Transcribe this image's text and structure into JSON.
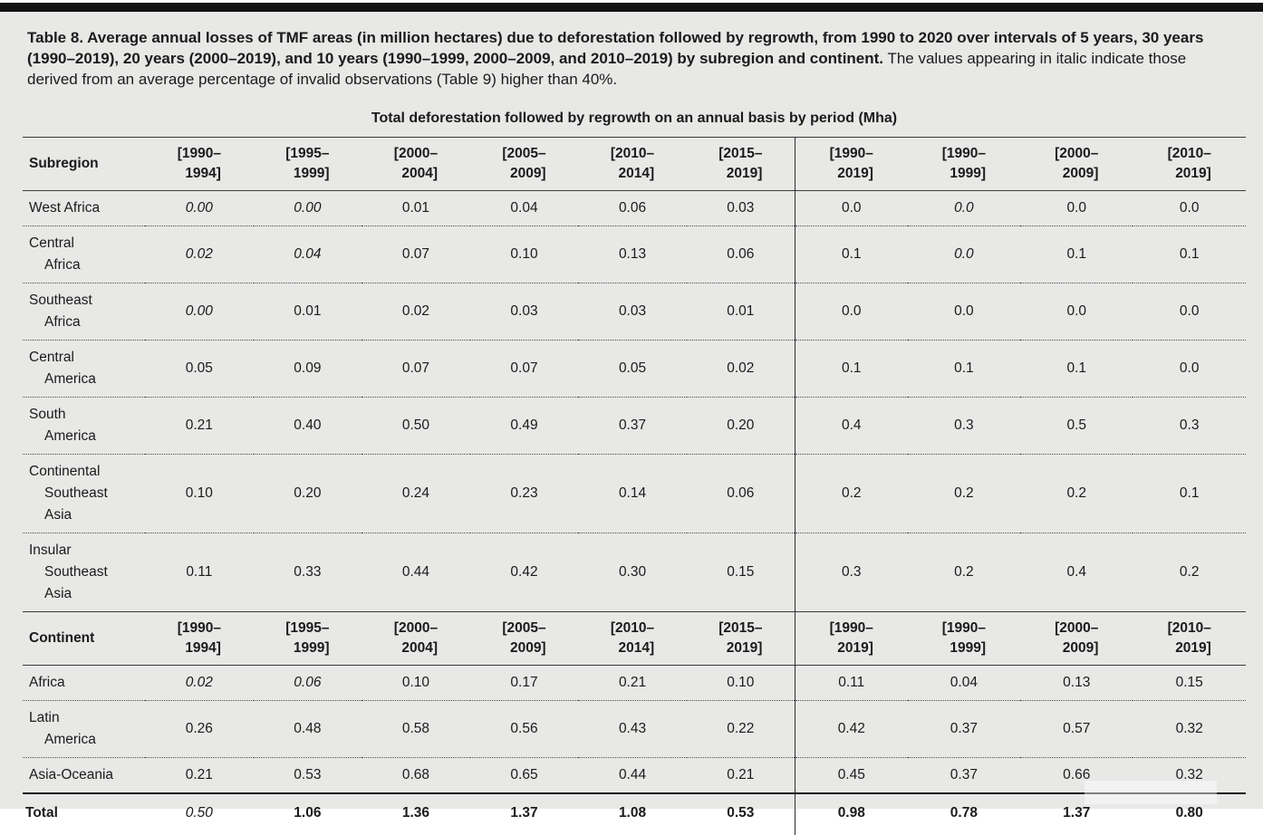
{
  "colors": {
    "page_background": "#e8e8e7",
    "top_bar": "#121212",
    "text": "#1b1b1b"
  },
  "caption": {
    "bold": "Table 8. Average annual losses of TMF areas (in million hectares) due to deforestation followed by regrowth, from 1990 to 2020 over intervals of 5 years, 30 years (1990–2019), 20 years (2000–2019), and 10 years (1990–1999, 2000–2009, and 2010–2019) by subregion and continent.",
    "regular": " The values appearing in italic indicate those derived from an average percentage of invalid observations (Table 9) higher than 40%."
  },
  "table": {
    "spanning_header": "Total deforestation followed by regrowth on an annual basis by period (Mha)",
    "period_columns": [
      "[1990–\n1994]",
      "[1995–\n1999]",
      "[2000–\n2004]",
      "[2005–\n2009]",
      "[2010–\n2014]",
      "[2015–\n2019]",
      "[1990–\n2019]",
      "[1990–\n1999]",
      "[2000–\n2009]",
      "[2010–\n2019]"
    ],
    "sections": [
      {
        "header_label": "Subregion",
        "rows": [
          {
            "label": "West Africa",
            "values": [
              "0.00",
              "0.00",
              "0.01",
              "0.04",
              "0.06",
              "0.03",
              "0.0",
              "0.0",
              "0.0",
              "0.0"
            ],
            "italic_indices": [
              0,
              1,
              7
            ]
          },
          {
            "label": "Central\nAfrica",
            "values": [
              "0.02",
              "0.04",
              "0.07",
              "0.10",
              "0.13",
              "0.06",
              "0.1",
              "0.0",
              "0.1",
              "0.1"
            ],
            "italic_indices": [
              0,
              1,
              7
            ]
          },
          {
            "label": "Southeast\nAfrica",
            "values": [
              "0.00",
              "0.01",
              "0.02",
              "0.03",
              "0.03",
              "0.01",
              "0.0",
              "0.0",
              "0.0",
              "0.0"
            ],
            "italic_indices": [
              0
            ]
          },
          {
            "label": "Central\nAmerica",
            "values": [
              "0.05",
              "0.09",
              "0.07",
              "0.07",
              "0.05",
              "0.02",
              "0.1",
              "0.1",
              "0.1",
              "0.0"
            ],
            "italic_indices": []
          },
          {
            "label": "South\nAmerica",
            "values": [
              "0.21",
              "0.40",
              "0.50",
              "0.49",
              "0.37",
              "0.20",
              "0.4",
              "0.3",
              "0.5",
              "0.3"
            ],
            "italic_indices": []
          },
          {
            "label": "Continental\nSoutheast\nAsia",
            "values": [
              "0.10",
              "0.20",
              "0.24",
              "0.23",
              "0.14",
              "0.06",
              "0.2",
              "0.2",
              "0.2",
              "0.1"
            ],
            "italic_indices": []
          },
          {
            "label": "Insular\nSoutheast\nAsia",
            "values": [
              "0.11",
              "0.33",
              "0.44",
              "0.42",
              "0.30",
              "0.15",
              "0.3",
              "0.2",
              "0.4",
              "0.2"
            ],
            "italic_indices": []
          }
        ]
      },
      {
        "header_label": "Continent",
        "rows": [
          {
            "label": "Africa",
            "values": [
              "0.02",
              "0.06",
              "0.10",
              "0.17",
              "0.21",
              "0.10",
              "0.11",
              "0.04",
              "0.13",
              "0.15"
            ],
            "italic_indices": [
              0,
              1
            ]
          },
          {
            "label": "Latin\nAmerica",
            "values": [
              "0.26",
              "0.48",
              "0.58",
              "0.56",
              "0.43",
              "0.22",
              "0.42",
              "0.37",
              "0.57",
              "0.32"
            ],
            "italic_indices": []
          },
          {
            "label": "Asia-Oceania",
            "values": [
              "0.21",
              "0.53",
              "0.68",
              "0.65",
              "0.44",
              "0.21",
              "0.45",
              "0.37",
              "0.66",
              "0.32"
            ],
            "italic_indices": []
          }
        ]
      }
    ],
    "total_row": {
      "label": "Total",
      "values": [
        "0.50",
        "1.06",
        "1.36",
        "1.37",
        "1.08",
        "0.53",
        "0.98",
        "0.78",
        "1.37",
        "0.80"
      ],
      "italic_indices": [
        0
      ],
      "bold_indices": [
        1,
        2,
        3,
        4,
        5,
        6,
        7,
        8,
        9
      ]
    }
  }
}
